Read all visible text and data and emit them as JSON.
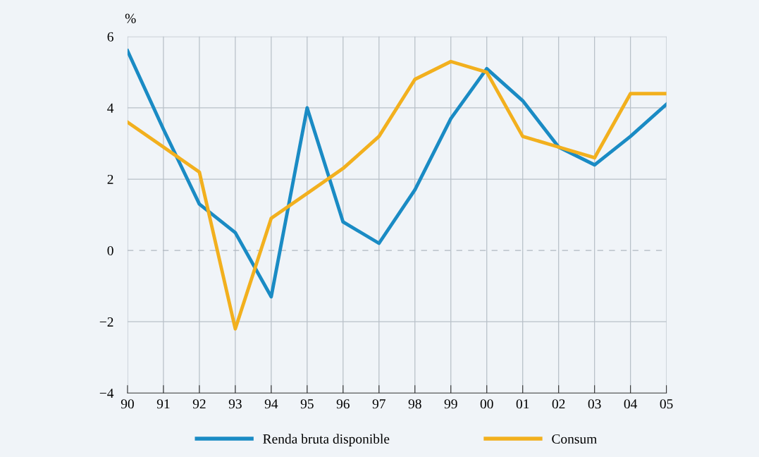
{
  "chart_data": {
    "type": "line",
    "ylabel": "%",
    "categories": [
      "90",
      "91",
      "92",
      "93",
      "94",
      "95",
      "96",
      "97",
      "98",
      "99",
      "00",
      "01",
      "02",
      "03",
      "04",
      "05"
    ],
    "series": [
      {
        "name": "Renda bruta disponible",
        "color": "#1a8bc4",
        "values": [
          5.6,
          3.4,
          1.3,
          0.5,
          -1.3,
          4.0,
          0.8,
          0.2,
          1.7,
          3.7,
          5.1,
          4.2,
          2.9,
          2.4,
          3.2,
          4.1
        ]
      },
      {
        "name": "Consum",
        "color": "#f2b01e",
        "values": [
          3.6,
          2.9,
          2.2,
          -2.2,
          0.9,
          1.6,
          2.3,
          3.2,
          4.8,
          5.3,
          5.0,
          3.2,
          2.9,
          2.6,
          4.4,
          4.4
        ]
      }
    ],
    "ylim": [
      -4,
      6
    ],
    "yticks": [
      {
        "value": -4,
        "label": "−4"
      },
      {
        "value": -2,
        "label": "−2"
      },
      0,
      2,
      4,
      6
    ],
    "ref_lines": [
      {
        "axis": "y",
        "value": 0,
        "line_style": "dashed",
        "color": "#b0b8c0"
      }
    ],
    "grid": true,
    "legend": "bottom",
    "marker": "none",
    "line_style": "solid"
  }
}
